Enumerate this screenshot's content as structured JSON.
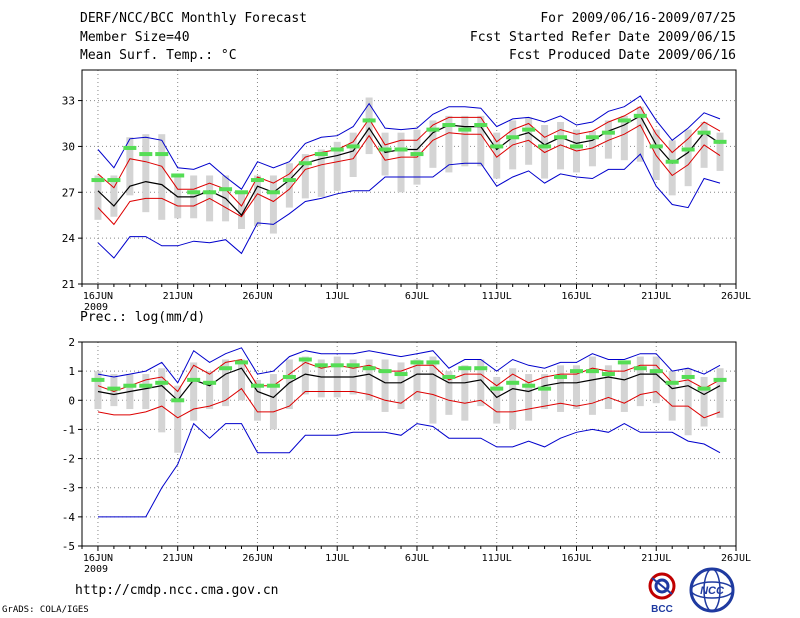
{
  "header": {
    "title": "DERF/NCC/BCC Monthly Forecast",
    "member_size": "Member Size=40",
    "variable": "Mean Surf. Temp.: °C",
    "forecast_period": "For 2009/06/16-2009/07/25",
    "started_date": "Fcst Started Refer Date 2009/06/15",
    "produced_date": "Fcst Produced Date 2009/06/16"
  },
  "footer": {
    "url": "http://cmdp.ncc.cma.gov.cn",
    "credit": "GrADS: COLA/IGES",
    "logo_left_text": "BCC",
    "logo_right_text": "NCC"
  },
  "colors": {
    "ensemble_mean": "#000000",
    "std_band": "#dd0000",
    "min_max": "#0000cc",
    "box": "#d4d4d4",
    "median": "#55dd55"
  },
  "chart_data": [
    {
      "type": "line",
      "title": "Mean Surf. Temp.: °C",
      "x_tick_labels": [
        "16JUN",
        "21JUN",
        "26JUN",
        "1JUL",
        "6JUL",
        "11JUL",
        "16JUL",
        "21JUL",
        "26JUL"
      ],
      "x_tick_days": [
        0,
        5,
        10,
        15,
        20,
        25,
        30,
        35,
        40
      ],
      "year_label": "2009",
      "ylim": [
        21,
        35
      ],
      "y_ticks": [
        21,
        24,
        27,
        30,
        33
      ],
      "y_tick_labels": [
        "21",
        "24",
        "27",
        "30",
        "33"
      ],
      "days": [
        0,
        1,
        2,
        3,
        4,
        5,
        6,
        7,
        8,
        9,
        10,
        11,
        12,
        13,
        14,
        15,
        16,
        17,
        18,
        19,
        20,
        21,
        22,
        23,
        24,
        25,
        26,
        27,
        28,
        29,
        30,
        31,
        32,
        33,
        34,
        35,
        36,
        37,
        38,
        39
      ],
      "series": [
        {
          "name": "max",
          "values": [
            29.8,
            28.6,
            30.5,
            30.6,
            30.4,
            28.6,
            28.5,
            28.9,
            28.0,
            27.2,
            29.0,
            28.6,
            29.0,
            30.2,
            30.6,
            30.7,
            31.3,
            32.8,
            31.2,
            31.1,
            31.2,
            32.1,
            32.6,
            32.6,
            32.5,
            31.3,
            31.8,
            31.9,
            31.6,
            32.0,
            31.4,
            31.6,
            32.3,
            32.6,
            33.3,
            31.7,
            30.4,
            31.2,
            32.2,
            31.8
          ]
        },
        {
          "name": "upper",
          "values": [
            28.2,
            27.3,
            29.2,
            29.0,
            28.7,
            27.2,
            27.2,
            27.6,
            27.2,
            26.1,
            28.0,
            27.6,
            28.2,
            29.3,
            29.6,
            29.8,
            30.3,
            31.8,
            30.1,
            30.4,
            30.4,
            31.4,
            31.9,
            31.9,
            31.9,
            30.3,
            31.1,
            31.5,
            30.6,
            31.1,
            30.8,
            31.0,
            31.6,
            32.0,
            32.6,
            30.8,
            29.6,
            30.5,
            31.6,
            31.0
          ]
        },
        {
          "name": "mean",
          "values": [
            27.1,
            26.1,
            27.4,
            27.7,
            27.5,
            26.7,
            26.7,
            27.1,
            26.6,
            25.5,
            27.4,
            27.0,
            27.8,
            28.9,
            29.2,
            29.4,
            29.7,
            31.2,
            29.6,
            29.8,
            29.8,
            30.9,
            31.4,
            31.3,
            31.3,
            29.8,
            30.6,
            30.9,
            30.1,
            30.6,
            30.2,
            30.4,
            31.0,
            31.4,
            32.0,
            30.1,
            28.9,
            29.6,
            30.9,
            30.2
          ]
        },
        {
          "name": "lower",
          "values": [
            26.0,
            24.9,
            26.4,
            26.6,
            26.6,
            26.1,
            26.1,
            26.6,
            26.0,
            25.4,
            26.9,
            26.4,
            27.2,
            28.5,
            28.8,
            29.0,
            29.2,
            30.7,
            29.1,
            29.3,
            29.3,
            30.4,
            30.9,
            30.8,
            30.8,
            29.3,
            30.1,
            30.4,
            29.6,
            30.1,
            29.7,
            29.9,
            30.4,
            30.8,
            31.4,
            29.4,
            28.1,
            28.8,
            30.1,
            29.4
          ]
        },
        {
          "name": "min",
          "values": [
            23.7,
            22.7,
            24.1,
            24.1,
            23.5,
            23.5,
            23.8,
            23.7,
            23.9,
            23.0,
            25.0,
            24.9,
            25.6,
            26.4,
            26.6,
            26.9,
            27.1,
            27.1,
            28.0,
            28.0,
            28.0,
            28.0,
            28.8,
            28.9,
            28.9,
            27.4,
            28.0,
            28.4,
            27.6,
            28.2,
            28.0,
            27.9,
            28.5,
            28.5,
            29.5,
            27.4,
            26.2,
            26.0,
            27.9,
            27.6
          ]
        },
        {
          "name": "box_top",
          "values": [
            28.1,
            28.1,
            30.6,
            30.8,
            30.8,
            28.1,
            28.1,
            28.1,
            28.1,
            26.9,
            28.1,
            28.1,
            28.9,
            29.5,
            29.8,
            30.3,
            30.9,
            33.2,
            30.9,
            30.9,
            31.1,
            31.7,
            32.0,
            32.0,
            32.0,
            30.9,
            31.7,
            31.9,
            31.4,
            31.6,
            31.1,
            31.0,
            31.7,
            32.0,
            32.6,
            31.1,
            30.4,
            31.1,
            31.6,
            30.9
          ]
        },
        {
          "name": "box_bottom",
          "values": [
            25.2,
            25.4,
            26.8,
            25.7,
            25.2,
            25.3,
            25.3,
            25.1,
            25.1,
            24.6,
            24.8,
            24.3,
            26.0,
            26.6,
            26.7,
            27.1,
            28.0,
            29.5,
            28.1,
            27.0,
            27.5,
            28.6,
            28.3,
            28.7,
            28.7,
            27.9,
            28.5,
            28.8,
            27.9,
            28.5,
            28.3,
            28.7,
            29.2,
            29.1,
            29.0,
            27.8,
            26.8,
            27.4,
            28.6,
            28.4
          ]
        },
        {
          "name": "median",
          "values": [
            27.8,
            27.8,
            29.9,
            29.5,
            29.5,
            28.1,
            27.0,
            27.0,
            27.2,
            27.0,
            27.8,
            27.0,
            27.8,
            28.9,
            29.5,
            29.8,
            30.0,
            31.7,
            29.8,
            29.8,
            29.5,
            31.1,
            31.4,
            31.1,
            31.4,
            30.0,
            30.6,
            31.1,
            30.0,
            30.6,
            30.0,
            30.6,
            30.9,
            31.7,
            32.0,
            30.0,
            29.0,
            29.8,
            30.9,
            30.3
          ]
        }
      ]
    },
    {
      "type": "line",
      "title": "Prec.: log(mm/d)",
      "x_tick_labels": [
        "16JUN",
        "21JUN",
        "26JUN",
        "1JUL",
        "6JUL",
        "11JUL",
        "16JUL",
        "21JUL",
        "26JUL"
      ],
      "x_tick_days": [
        0,
        5,
        10,
        15,
        20,
        25,
        30,
        35,
        40
      ],
      "year_label": "2009",
      "ylim": [
        -5,
        2
      ],
      "y_ticks": [
        -5,
        -4,
        -3,
        -2,
        -1,
        0,
        1,
        2
      ],
      "y_tick_labels": [
        "-5",
        "-4",
        "-3",
        "-2",
        "-1",
        "0",
        "1",
        "2"
      ],
      "days": [
        0,
        1,
        2,
        3,
        4,
        5,
        6,
        7,
        8,
        9,
        10,
        11,
        12,
        13,
        14,
        15,
        16,
        17,
        18,
        19,
        20,
        21,
        22,
        23,
        24,
        25,
        26,
        27,
        28,
        29,
        30,
        31,
        32,
        33,
        34,
        35,
        36,
        37,
        38,
        39
      ],
      "series": [
        {
          "name": "max",
          "values": [
            0.9,
            0.8,
            0.9,
            1.0,
            1.3,
            0.6,
            1.7,
            1.3,
            1.6,
            1.8,
            0.9,
            1.0,
            1.5,
            1.7,
            1.6,
            1.6,
            1.6,
            1.7,
            1.6,
            1.5,
            1.6,
            1.7,
            1.1,
            1.4,
            1.4,
            1.0,
            1.4,
            1.2,
            1.1,
            1.3,
            1.3,
            1.6,
            1.4,
            1.4,
            1.6,
            1.6,
            1.0,
            1.1,
            0.9,
            1.2
          ]
        },
        {
          "name": "upper",
          "values": [
            0.5,
            0.3,
            0.5,
            0.7,
            0.8,
            0.3,
            1.2,
            0.9,
            1.3,
            1.4,
            0.5,
            0.5,
            0.9,
            1.3,
            1.1,
            1.2,
            1.1,
            1.2,
            1.0,
            1.0,
            1.2,
            1.2,
            0.7,
            0.9,
            0.9,
            0.5,
            0.9,
            0.6,
            0.8,
            0.9,
            0.9,
            1.1,
            1.0,
            1.0,
            1.2,
            1.2,
            0.6,
            0.7,
            0.4,
            0.7
          ]
        },
        {
          "name": "mean",
          "values": [
            0.3,
            0.2,
            0.3,
            0.4,
            0.5,
            0.0,
            0.7,
            0.5,
            0.9,
            1.1,
            0.3,
            0.1,
            0.6,
            0.9,
            0.8,
            0.8,
            0.8,
            0.9,
            0.6,
            0.6,
            0.9,
            0.9,
            0.6,
            0.6,
            0.7,
            0.1,
            0.4,
            0.3,
            0.5,
            0.6,
            0.6,
            0.7,
            0.8,
            0.7,
            0.9,
            0.9,
            0.4,
            0.5,
            0.2,
            0.5
          ]
        },
        {
          "name": "lower",
          "values": [
            -0.4,
            -0.5,
            -0.5,
            -0.4,
            -0.2,
            -0.6,
            -0.3,
            -0.2,
            0.0,
            0.4,
            -0.4,
            -0.4,
            -0.2,
            0.3,
            0.3,
            0.3,
            0.3,
            0.2,
            0.0,
            -0.1,
            0.3,
            0.2,
            0.0,
            -0.1,
            0.0,
            -0.4,
            -0.4,
            -0.3,
            -0.2,
            -0.1,
            -0.2,
            -0.1,
            0.1,
            -0.1,
            0.2,
            0.3,
            -0.2,
            -0.2,
            -0.6,
            -0.4
          ]
        },
        {
          "name": "min",
          "values": [
            -4.0,
            -4.0,
            -4.0,
            -4.0,
            -3.0,
            -2.2,
            -0.8,
            -1.3,
            -0.8,
            -0.8,
            -1.8,
            -1.8,
            -1.8,
            -1.2,
            -1.2,
            -1.2,
            -1.1,
            -1.1,
            -1.1,
            -1.2,
            -0.8,
            -0.9,
            -1.3,
            -1.3,
            -1.3,
            -1.6,
            -1.6,
            -1.4,
            -1.6,
            -1.3,
            -1.1,
            -1.0,
            -1.1,
            -0.8,
            -1.1,
            -1.1,
            -1.1,
            -1.4,
            -1.5,
            -1.8
          ]
        },
        {
          "name": "box_top",
          "values": [
            1.0,
            0.9,
            0.9,
            0.9,
            1.1,
            0.5,
            1.3,
            1.0,
            1.4,
            1.4,
            0.7,
            0.9,
            1.4,
            1.5,
            1.4,
            1.5,
            1.4,
            1.4,
            1.4,
            1.3,
            1.4,
            1.5,
            1.0,
            1.2,
            1.4,
            0.8,
            1.1,
            0.9,
            0.9,
            1.2,
            1.2,
            1.5,
            1.2,
            1.3,
            1.5,
            1.5,
            1.0,
            1.1,
            0.8,
            1.1
          ]
        },
        {
          "name": "box_bottom",
          "values": [
            -0.3,
            -0.2,
            -0.3,
            -0.3,
            -1.1,
            -1.8,
            -0.7,
            -0.3,
            -0.2,
            0.0,
            -0.7,
            -1.0,
            -0.3,
            0.2,
            0.1,
            0.1,
            0.2,
            0.0,
            -0.4,
            -0.3,
            0.0,
            -0.8,
            -0.5,
            -0.7,
            -0.2,
            -0.8,
            -1.0,
            -0.7,
            -0.3,
            -0.4,
            -0.3,
            -0.5,
            -0.3,
            -0.4,
            -0.2,
            -0.1,
            -0.7,
            -1.2,
            -0.9,
            -0.6
          ]
        },
        {
          "name": "median",
          "values": [
            0.7,
            0.4,
            0.5,
            0.5,
            0.6,
            0.0,
            0.7,
            0.6,
            1.1,
            1.3,
            0.5,
            0.5,
            0.8,
            1.4,
            1.2,
            1.2,
            1.2,
            1.1,
            1.0,
            0.9,
            1.3,
            1.3,
            0.8,
            1.1,
            1.1,
            0.4,
            0.6,
            0.5,
            0.4,
            0.8,
            1.0,
            1.0,
            0.9,
            1.3,
            1.1,
            1.0,
            0.6,
            0.8,
            0.4,
            0.7
          ]
        }
      ]
    }
  ]
}
